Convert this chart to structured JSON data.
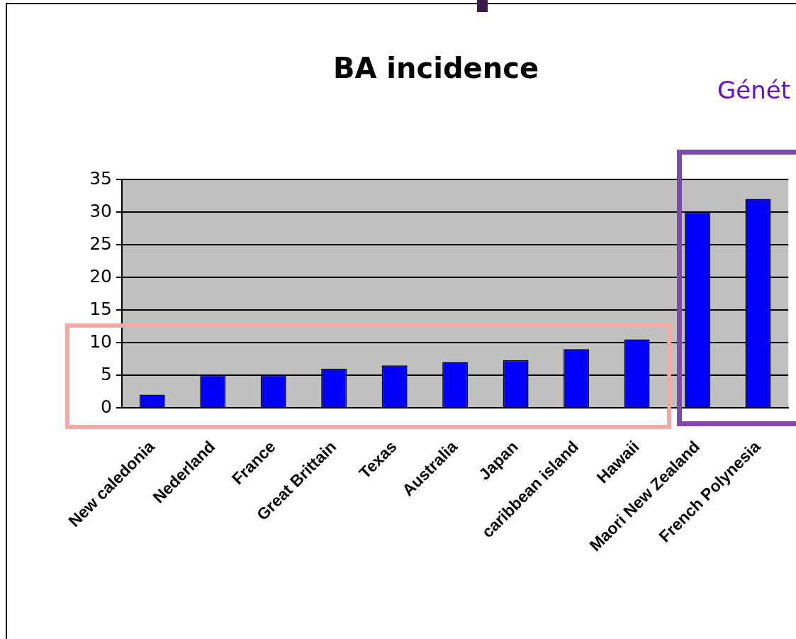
{
  "chart_data": {
    "type": "bar",
    "title": "BA incidence",
    "categories": [
      "New caledonia",
      "Nederland",
      "France",
      "Great Brittain",
      "Texas",
      "Australia",
      "Japan",
      "caribbean island",
      "Hawaii",
      "Maori New Zealand",
      "French Polynesia"
    ],
    "values": [
      2,
      5,
      5,
      6,
      6.5,
      7,
      7.3,
      9,
      10.5,
      30,
      32
    ],
    "color": "#0000ff",
    "ylim": [
      0,
      35
    ],
    "yticks": [
      0,
      5,
      10,
      15,
      20,
      25,
      30,
      35
    ],
    "grid": "y",
    "annotations": [
      "Génét"
    ]
  }
}
